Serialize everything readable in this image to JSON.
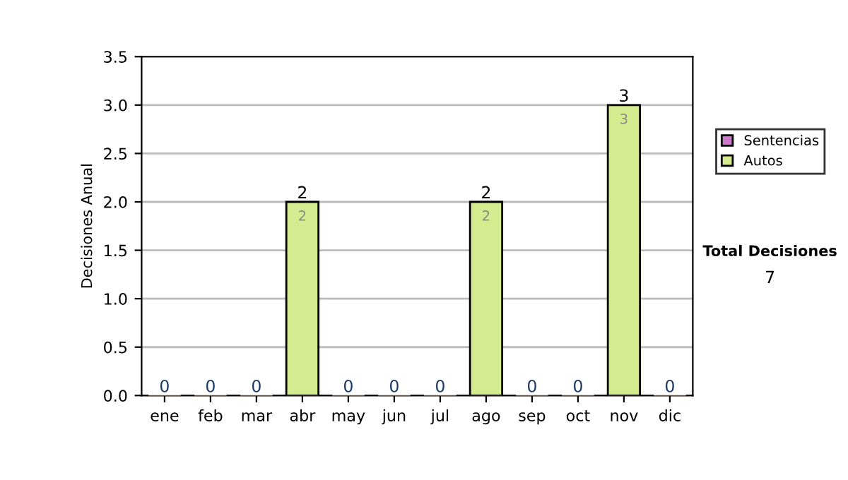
{
  "chart_data": {
    "type": "bar",
    "stacked": true,
    "ylabel": "Decisiones Anual",
    "categories": [
      "ene",
      "feb",
      "mar",
      "abr",
      "may",
      "jun",
      "jul",
      "ago",
      "sep",
      "oct",
      "nov",
      "dic"
    ],
    "series": [
      {
        "name": "Sentencias",
        "color": "#cc77cc",
        "values": [
          0,
          0,
          0,
          0,
          0,
          0,
          0,
          0,
          0,
          0,
          0,
          0
        ]
      },
      {
        "name": "Autos",
        "color": "#d4eb8f",
        "values": [
          0,
          0,
          0,
          2,
          0,
          0,
          0,
          2,
          0,
          0,
          3,
          0
        ],
        "value_labels": [
          null,
          null,
          null,
          "2",
          null,
          null,
          null,
          "2",
          null,
          null,
          "3",
          null
        ]
      }
    ],
    "totals": [
      "0",
      "0",
      "0",
      "2",
      "0",
      "0",
      "0",
      "2",
      "0",
      "0",
      "3",
      "0"
    ],
    "ylim": [
      0,
      3.5
    ],
    "yticks": [
      {
        "value": 0,
        "label": "0.0"
      },
      {
        "value": 0.5,
        "label": "0.5"
      },
      {
        "value": 1,
        "label": "1.0"
      },
      {
        "value": 1.5,
        "label": "1.5"
      },
      {
        "value": 2,
        "label": "2.0"
      },
      {
        "value": 2.5,
        "label": "2.5"
      },
      {
        "value": 3,
        "label": "3.0"
      },
      {
        "value": 3.5,
        "label": "3.5"
      }
    ],
    "grid": "y",
    "legend": "right",
    "annotations": [
      "Total Decisiones",
      "7"
    ]
  }
}
